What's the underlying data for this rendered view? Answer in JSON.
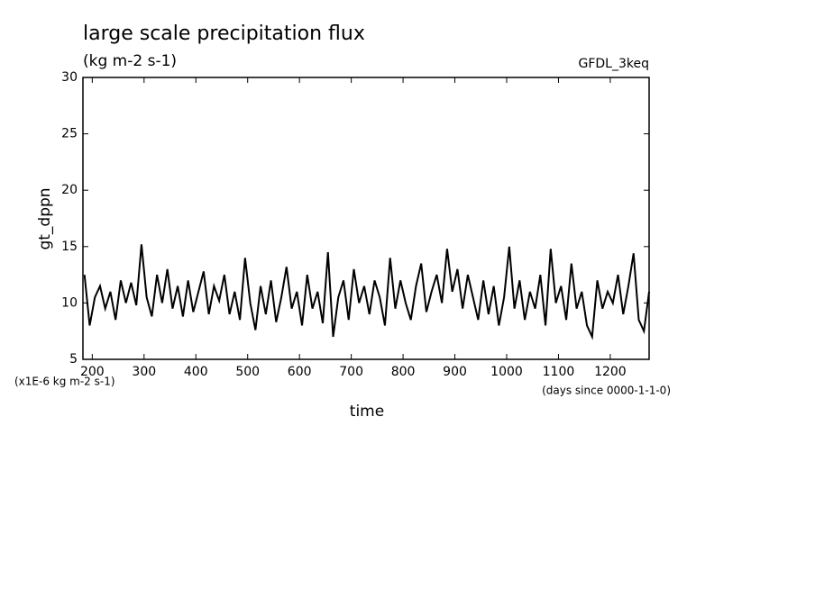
{
  "chart_data": {
    "type": "line",
    "title": "large scale precipitation flux",
    "subtitle": "(kg m-2 s-1)",
    "annotation": "GFDL_3keq",
    "y_label": "gt_dppn",
    "x_label": "time",
    "y_units": "(x1E-6 kg m-2 s-1)",
    "x_units": "(days since 0000-1-1-0)",
    "xlim": [
      182,
      1275
    ],
    "ylim": [
      5,
      30
    ],
    "xticks": [
      200,
      300,
      400,
      500,
      600,
      700,
      800,
      900,
      1000,
      1100,
      1200
    ],
    "yticks": [
      5,
      10,
      15,
      20,
      25,
      30
    ],
    "color": "#000000",
    "x": [
      185,
      195,
      205,
      215,
      225,
      235,
      245,
      255,
      265,
      275,
      285,
      295,
      305,
      315,
      325,
      335,
      345,
      355,
      365,
      375,
      385,
      395,
      405,
      415,
      425,
      435,
      445,
      455,
      465,
      475,
      485,
      495,
      505,
      515,
      525,
      535,
      545,
      555,
      565,
      575,
      585,
      595,
      605,
      615,
      625,
      635,
      645,
      655,
      665,
      675,
      685,
      695,
      705,
      715,
      725,
      735,
      745,
      755,
      765,
      775,
      785,
      795,
      805,
      815,
      825,
      835,
      845,
      855,
      865,
      875,
      885,
      895,
      905,
      915,
      925,
      935,
      945,
      955,
      965,
      975,
      985,
      995,
      1005,
      1015,
      1025,
      1035,
      1045,
      1055,
      1065,
      1075,
      1085,
      1095,
      1105,
      1115,
      1125,
      1135,
      1145,
      1155,
      1165,
      1175,
      1185,
      1195,
      1205,
      1215,
      1225,
      1235,
      1245,
      1255,
      1265,
      1275
    ],
    "values": [
      12.5,
      8.0,
      10.5,
      11.5,
      9.5,
      11.0,
      8.5,
      12.0,
      10.0,
      11.8,
      9.8,
      15.2,
      10.5,
      8.8,
      12.5,
      10.0,
      13.0,
      9.5,
      11.5,
      8.8,
      12.0,
      9.2,
      11.0,
      12.8,
      9.0,
      11.5,
      10.2,
      12.5,
      9.0,
      11.0,
      8.5,
      14.0,
      10.0,
      7.6,
      11.5,
      9.0,
      12.0,
      8.3,
      10.5,
      13.2,
      9.5,
      11.0,
      8.0,
      12.5,
      9.5,
      11.0,
      8.2,
      14.5,
      7.0,
      10.5,
      12.0,
      8.5,
      13.0,
      10.0,
      11.5,
      9.0,
      12.0,
      10.5,
      8.0,
      14.0,
      9.5,
      12.0,
      10.0,
      8.5,
      11.5,
      13.5,
      9.2,
      11.0,
      12.5,
      10.0,
      14.8,
      11.0,
      13.0,
      9.5,
      12.5,
      10.5,
      8.5,
      12.0,
      9.0,
      11.5,
      8.0,
      10.5,
      15.0,
      9.5,
      12.0,
      8.5,
      11.0,
      9.5,
      12.5,
      8.0,
      14.8,
      10.0,
      11.5,
      8.5,
      13.5,
      9.5,
      11.0,
      8.0,
      7.0,
      12.0,
      9.5,
      11.0,
      10.0,
      12.5,
      9.0,
      11.5,
      14.4,
      8.5,
      7.5,
      11.0
    ]
  }
}
